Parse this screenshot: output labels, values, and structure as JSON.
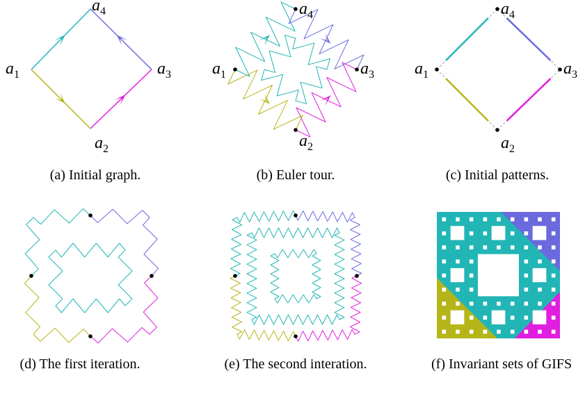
{
  "panels": [
    {
      "caption": "(a) Initial graph.",
      "nodes": [
        {
          "letter": "a",
          "index": "1"
        },
        {
          "letter": "a",
          "index": "2"
        },
        {
          "letter": "a",
          "index": "3"
        },
        {
          "letter": "a",
          "index": "4"
        }
      ]
    },
    {
      "caption": "(b) Euler tour.",
      "nodes": [
        {
          "letter": "a",
          "index": "1"
        },
        {
          "letter": "a",
          "index": "2"
        },
        {
          "letter": "a",
          "index": "3"
        },
        {
          "letter": "a",
          "index": "4"
        }
      ]
    },
    {
      "caption": "(c) Initial patterns.",
      "nodes": [
        {
          "letter": "a",
          "index": "1"
        },
        {
          "letter": "a",
          "index": "2"
        },
        {
          "letter": "a",
          "index": "3"
        },
        {
          "letter": "a",
          "index": "4"
        }
      ]
    },
    {
      "caption": "(d) The first iteration."
    },
    {
      "caption": "(e) The second interation."
    },
    {
      "caption": "(f) Invariant sets of GIFS"
    }
  ]
}
